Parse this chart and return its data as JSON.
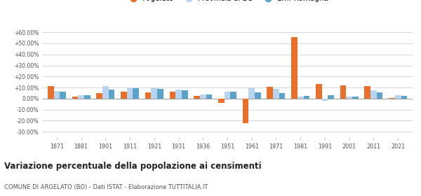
{
  "years": [
    1871,
    1881,
    1901,
    1911,
    1921,
    1931,
    1936,
    1951,
    1961,
    1971,
    1981,
    1991,
    2001,
    2011,
    2021
  ],
  "argelato": [
    11.0,
    2.0,
    5.0,
    6.5,
    5.5,
    6.0,
    2.5,
    -4.0,
    -22.0,
    10.5,
    56.0,
    13.0,
    12.0,
    11.0,
    0.5
  ],
  "provincia_bo": [
    7.0,
    3.0,
    11.5,
    10.0,
    10.0,
    8.0,
    3.5,
    6.0,
    10.0,
    8.5,
    1.5,
    -2.0,
    2.0,
    7.5,
    3.0
  ],
  "emilia_romagna": [
    6.5,
    3.0,
    8.0,
    9.5,
    9.0,
    7.5,
    3.5,
    6.0,
    5.5,
    5.0,
    2.5,
    3.0,
    1.5,
    5.5,
    2.5
  ],
  "color_argelato": "#e8702a",
  "color_provincia": "#b8d4ee",
  "color_emilia": "#5ba3c9",
  "background": "#ffffff",
  "grid_color": "#d0d8e8",
  "title": "Variazione percentuale della popolazione ai censimenti",
  "subtitle": "COMUNE DI ARGELATO (BO) - Dati ISTAT - Elaborazione TUTTITALIA.IT",
  "yticks": [
    -30,
    -20,
    -10,
    0,
    10,
    20,
    30,
    40,
    50,
    60
  ],
  "ylim": [
    -35,
    68
  ]
}
